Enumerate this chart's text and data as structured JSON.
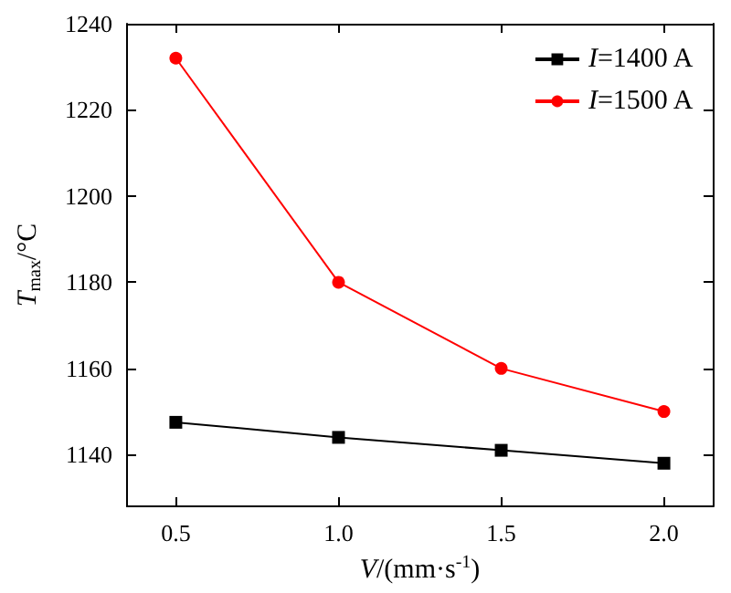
{
  "chart_data": {
    "type": "line",
    "xlabel": "V/(mm·s$^{-1}$)",
    "ylabel": "T$_{max}$/°C",
    "x": [
      0.5,
      1.0,
      1.5,
      2.0
    ],
    "series": [
      {
        "name": "I=1400 A",
        "color": "#000000",
        "marker": "square",
        "values": [
          1147.5,
          1144,
          1141,
          1138
        ]
      },
      {
        "name": "I=1500 A",
        "color": "#ff0000",
        "marker": "circle",
        "values": [
          1232,
          1180,
          1160,
          1150
        ]
      }
    ],
    "xlim": [
      0.35,
      2.15
    ],
    "xticks": [
      {
        "value": 0.5,
        "label": "0.5"
      },
      {
        "value": 1,
        "label": "1.0"
      },
      {
        "value": 1.5,
        "label": "1.5"
      },
      {
        "value": 2,
        "label": "2.0"
      }
    ],
    "ylim": [
      1128,
      1240
    ],
    "yticks": [
      1140,
      1160,
      1180,
      1200,
      1220,
      1240
    ],
    "grid": false,
    "legend": "top right",
    "line_style": "solid"
  }
}
